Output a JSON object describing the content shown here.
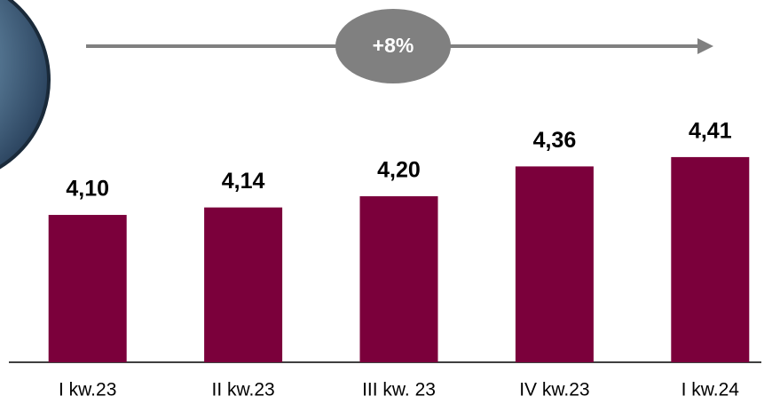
{
  "chart_data": {
    "type": "bar",
    "categories": [
      "I kw.23",
      "II kw.23",
      "III kw. 23",
      "IV kw.23",
      "I kw.24"
    ],
    "values": [
      4.1,
      4.14,
      4.2,
      4.36,
      4.41
    ],
    "value_labels": [
      "4,10",
      "4,14",
      "4,20",
      "4,36",
      "4,41"
    ],
    "color": "#7b003b",
    "ylim": [
      3.31,
      4.6
    ],
    "annotation": "+8%"
  }
}
